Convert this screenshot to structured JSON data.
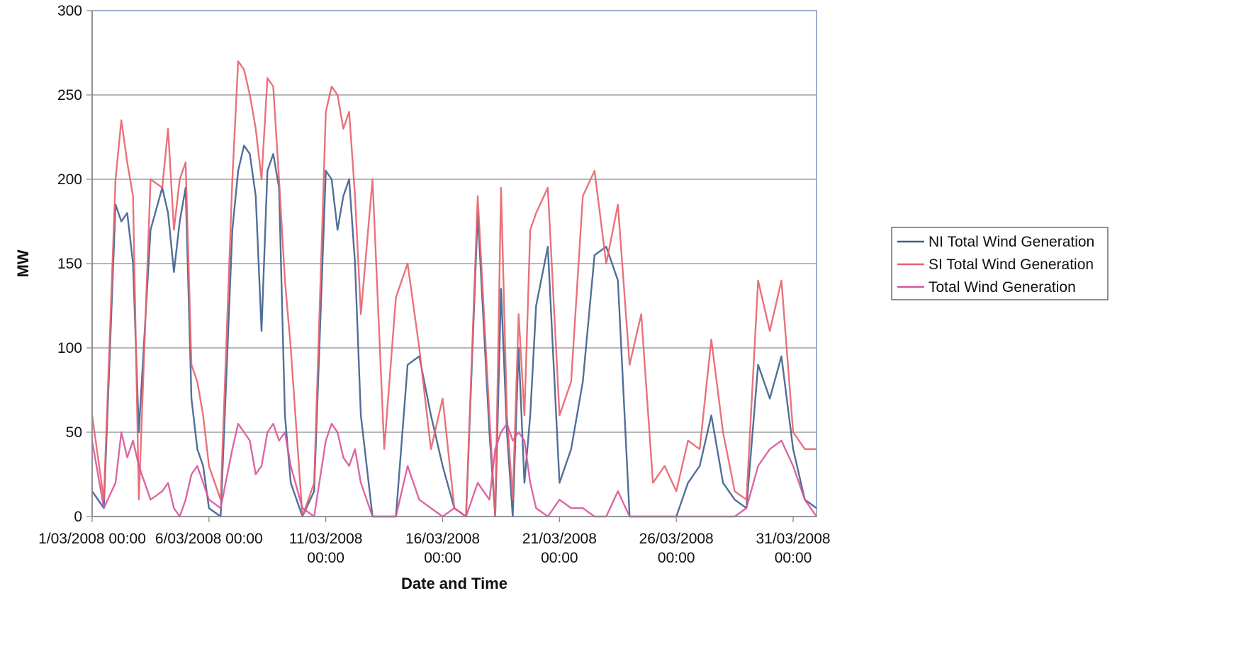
{
  "chart_data": {
    "type": "line",
    "title": "",
    "xlabel": "Date and Time",
    "ylabel": "MW",
    "ylim": [
      0,
      300
    ],
    "yticks": [
      "0",
      "50",
      "100",
      "150",
      "200",
      "250",
      "300"
    ],
    "xlim": [
      "2008-03-01 00:00",
      "2008-04-01 00:00"
    ],
    "xticks": [
      {
        "lines": [
          "1/03/2008 00:00"
        ]
      },
      {
        "lines": [
          "6/03/2008 00:00"
        ]
      },
      {
        "lines": [
          "11/03/2008",
          "00:00"
        ]
      },
      {
        "lines": [
          "16/03/2008",
          "00:00"
        ]
      },
      {
        "lines": [
          "21/03/2008",
          "00:00"
        ]
      },
      {
        "lines": [
          "26/03/2008",
          "00:00"
        ]
      },
      {
        "lines": [
          "31/03/2008",
          "00:00"
        ]
      }
    ],
    "grid": "horizontal",
    "legend_position": "right",
    "series": [
      {
        "name": "NI Total Wind Generation",
        "color": "#3d5f8e",
        "x": [
          "2008-03-01 00:00",
          "2008-03-01 12:00",
          "2008-03-02 00:00",
          "2008-03-02 06:00",
          "2008-03-02 12:00",
          "2008-03-02 18:00",
          "2008-03-03 00:00",
          "2008-03-03 12:00",
          "2008-03-04 00:00",
          "2008-03-04 06:00",
          "2008-03-04 12:00",
          "2008-03-04 18:00",
          "2008-03-05 00:00",
          "2008-03-05 06:00",
          "2008-03-05 12:00",
          "2008-03-05 18:00",
          "2008-03-06 00:00",
          "2008-03-06 12:00",
          "2008-03-07 00:00",
          "2008-03-07 06:00",
          "2008-03-07 12:00",
          "2008-03-07 18:00",
          "2008-03-08 00:00",
          "2008-03-08 06:00",
          "2008-03-08 12:00",
          "2008-03-08 18:00",
          "2008-03-09 00:00",
          "2008-03-09 06:00",
          "2008-03-09 12:00",
          "2008-03-10 00:00",
          "2008-03-10 12:00",
          "2008-03-11 00:00",
          "2008-03-11 06:00",
          "2008-03-11 12:00",
          "2008-03-11 18:00",
          "2008-03-12 00:00",
          "2008-03-12 06:00",
          "2008-03-12 12:00",
          "2008-03-13 00:00",
          "2008-03-13 12:00",
          "2008-03-14 00:00",
          "2008-03-14 12:00",
          "2008-03-15 00:00",
          "2008-03-15 12:00",
          "2008-03-16 00:00",
          "2008-03-16 12:00",
          "2008-03-17 00:00",
          "2008-03-17 12:00",
          "2008-03-18 00:00",
          "2008-03-18 06:00",
          "2008-03-18 12:00",
          "2008-03-18 18:00",
          "2008-03-19 00:00",
          "2008-03-19 06:00",
          "2008-03-19 12:00",
          "2008-03-19 18:00",
          "2008-03-20 00:00",
          "2008-03-20 12:00",
          "2008-03-21 00:00",
          "2008-03-21 12:00",
          "2008-03-22 00:00",
          "2008-03-22 12:00",
          "2008-03-23 00:00",
          "2008-03-23 12:00",
          "2008-03-24 00:00",
          "2008-03-24 12:00",
          "2008-03-25 00:00",
          "2008-03-25 12:00",
          "2008-03-26 00:00",
          "2008-03-26 12:00",
          "2008-03-27 00:00",
          "2008-03-27 12:00",
          "2008-03-28 00:00",
          "2008-03-28 12:00",
          "2008-03-29 00:00",
          "2008-03-29 12:00",
          "2008-03-30 00:00",
          "2008-03-30 12:00",
          "2008-03-31 00:00",
          "2008-03-31 12:00",
          "2008-04-01 00:00"
        ],
        "values": [
          15,
          5,
          185,
          175,
          180,
          150,
          50,
          170,
          195,
          180,
          145,
          175,
          195,
          70,
          40,
          30,
          5,
          0,
          170,
          205,
          220,
          215,
          190,
          110,
          205,
          215,
          195,
          60,
          20,
          0,
          15,
          205,
          200,
          170,
          190,
          200,
          150,
          60,
          0,
          0,
          0,
          90,
          95,
          60,
          30,
          5,
          0,
          180,
          50,
          0,
          135,
          50,
          0,
          100,
          20,
          60,
          125,
          160,
          20,
          40,
          80,
          155,
          160,
          140,
          0,
          0,
          0,
          0,
          0,
          20,
          30,
          60,
          20,
          10,
          5,
          90,
          70,
          95,
          40,
          10,
          5
        ]
      },
      {
        "name": "SI Total Wind Generation",
        "color": "#e8636b",
        "x": [
          "2008-03-01 00:00",
          "2008-03-01 12:00",
          "2008-03-02 00:00",
          "2008-03-02 06:00",
          "2008-03-02 12:00",
          "2008-03-02 18:00",
          "2008-03-03 00:00",
          "2008-03-03 12:00",
          "2008-03-04 00:00",
          "2008-03-04 06:00",
          "2008-03-04 12:00",
          "2008-03-04 18:00",
          "2008-03-05 00:00",
          "2008-03-05 06:00",
          "2008-03-05 12:00",
          "2008-03-05 18:00",
          "2008-03-06 00:00",
          "2008-03-06 12:00",
          "2008-03-07 00:00",
          "2008-03-07 06:00",
          "2008-03-07 12:00",
          "2008-03-07 18:00",
          "2008-03-08 00:00",
          "2008-03-08 06:00",
          "2008-03-08 12:00",
          "2008-03-08 18:00",
          "2008-03-09 00:00",
          "2008-03-09 06:00",
          "2008-03-09 12:00",
          "2008-03-10 00:00",
          "2008-03-10 12:00",
          "2008-03-11 00:00",
          "2008-03-11 06:00",
          "2008-03-11 12:00",
          "2008-03-11 18:00",
          "2008-03-12 00:00",
          "2008-03-12 06:00",
          "2008-03-12 12:00",
          "2008-03-13 00:00",
          "2008-03-13 12:00",
          "2008-03-14 00:00",
          "2008-03-14 12:00",
          "2008-03-15 00:00",
          "2008-03-15 12:00",
          "2008-03-16 00:00",
          "2008-03-16 12:00",
          "2008-03-17 00:00",
          "2008-03-17 12:00",
          "2008-03-18 00:00",
          "2008-03-18 06:00",
          "2008-03-18 12:00",
          "2008-03-18 18:00",
          "2008-03-19 00:00",
          "2008-03-19 06:00",
          "2008-03-19 12:00",
          "2008-03-19 18:00",
          "2008-03-20 00:00",
          "2008-03-20 12:00",
          "2008-03-21 00:00",
          "2008-03-21 12:00",
          "2008-03-22 00:00",
          "2008-03-22 12:00",
          "2008-03-23 00:00",
          "2008-03-23 12:00",
          "2008-03-24 00:00",
          "2008-03-24 12:00",
          "2008-03-25 00:00",
          "2008-03-25 12:00",
          "2008-03-26 00:00",
          "2008-03-26 12:00",
          "2008-03-27 00:00",
          "2008-03-27 12:00",
          "2008-03-28 00:00",
          "2008-03-28 12:00",
          "2008-03-29 00:00",
          "2008-03-29 12:00",
          "2008-03-30 00:00",
          "2008-03-30 12:00",
          "2008-03-31 00:00",
          "2008-03-31 12:00",
          "2008-04-01 00:00"
        ],
        "values": [
          60,
          10,
          200,
          235,
          210,
          190,
          10,
          200,
          195,
          230,
          170,
          200,
          210,
          90,
          80,
          60,
          30,
          10,
          200,
          270,
          265,
          250,
          230,
          200,
          260,
          255,
          200,
          140,
          100,
          0,
          20,
          240,
          255,
          250,
          230,
          240,
          190,
          120,
          200,
          40,
          130,
          150,
          100,
          40,
          70,
          5,
          0,
          190,
          60,
          0,
          195,
          60,
          10,
          120,
          60,
          170,
          180,
          195,
          60,
          80,
          190,
          205,
          150,
          185,
          90,
          120,
          20,
          30,
          15,
          45,
          40,
          105,
          50,
          15,
          10,
          140,
          110,
          140,
          50,
          40,
          40
        ]
      },
      {
        "name": "Total Wind Generation",
        "color": "#d9559a",
        "x": [
          "2008-03-01 00:00",
          "2008-03-01 12:00",
          "2008-03-02 00:00",
          "2008-03-02 06:00",
          "2008-03-02 12:00",
          "2008-03-02 18:00",
          "2008-03-03 00:00",
          "2008-03-03 12:00",
          "2008-03-04 00:00",
          "2008-03-04 06:00",
          "2008-03-04 12:00",
          "2008-03-04 18:00",
          "2008-03-05 00:00",
          "2008-03-05 06:00",
          "2008-03-05 12:00",
          "2008-03-05 18:00",
          "2008-03-06 00:00",
          "2008-03-06 12:00",
          "2008-03-07 00:00",
          "2008-03-07 06:00",
          "2008-03-07 12:00",
          "2008-03-07 18:00",
          "2008-03-08 00:00",
          "2008-03-08 06:00",
          "2008-03-08 12:00",
          "2008-03-08 18:00",
          "2008-03-09 00:00",
          "2008-03-09 06:00",
          "2008-03-09 12:00",
          "2008-03-10 00:00",
          "2008-03-10 12:00",
          "2008-03-11 00:00",
          "2008-03-11 06:00",
          "2008-03-11 12:00",
          "2008-03-11 18:00",
          "2008-03-12 00:00",
          "2008-03-12 06:00",
          "2008-03-12 12:00",
          "2008-03-13 00:00",
          "2008-03-13 12:00",
          "2008-03-14 00:00",
          "2008-03-14 12:00",
          "2008-03-15 00:00",
          "2008-03-15 12:00",
          "2008-03-16 00:00",
          "2008-03-16 12:00",
          "2008-03-17 00:00",
          "2008-03-17 12:00",
          "2008-03-18 00:00",
          "2008-03-18 06:00",
          "2008-03-18 12:00",
          "2008-03-18 18:00",
          "2008-03-19 00:00",
          "2008-03-19 06:00",
          "2008-03-19 12:00",
          "2008-03-19 18:00",
          "2008-03-20 00:00",
          "2008-03-20 12:00",
          "2008-03-21 00:00",
          "2008-03-21 12:00",
          "2008-03-22 00:00",
          "2008-03-22 12:00",
          "2008-03-23 00:00",
          "2008-03-23 12:00",
          "2008-03-24 00:00",
          "2008-03-24 12:00",
          "2008-03-25 00:00",
          "2008-03-25 12:00",
          "2008-03-26 00:00",
          "2008-03-26 12:00",
          "2008-03-27 00:00",
          "2008-03-27 12:00",
          "2008-03-28 00:00",
          "2008-03-28 12:00",
          "2008-03-29 00:00",
          "2008-03-29 12:00",
          "2008-03-30 00:00",
          "2008-03-30 12:00",
          "2008-03-31 00:00",
          "2008-03-31 12:00",
          "2008-04-01 00:00"
        ],
        "values": [
          45,
          5,
          20,
          50,
          35,
          45,
          30,
          10,
          15,
          20,
          5,
          0,
          10,
          25,
          30,
          20,
          10,
          5,
          40,
          55,
          50,
          45,
          25,
          30,
          50,
          55,
          45,
          50,
          30,
          5,
          0,
          45,
          55,
          50,
          35,
          30,
          40,
          20,
          0,
          0,
          0,
          30,
          10,
          5,
          0,
          5,
          0,
          20,
          10,
          40,
          50,
          55,
          45,
          50,
          45,
          20,
          5,
          0,
          10,
          5,
          5,
          0,
          0,
          15,
          0,
          0,
          0,
          0,
          0,
          0,
          0,
          0,
          0,
          0,
          5,
          30,
          40,
          45,
          30,
          10,
          0
        ]
      }
    ]
  }
}
